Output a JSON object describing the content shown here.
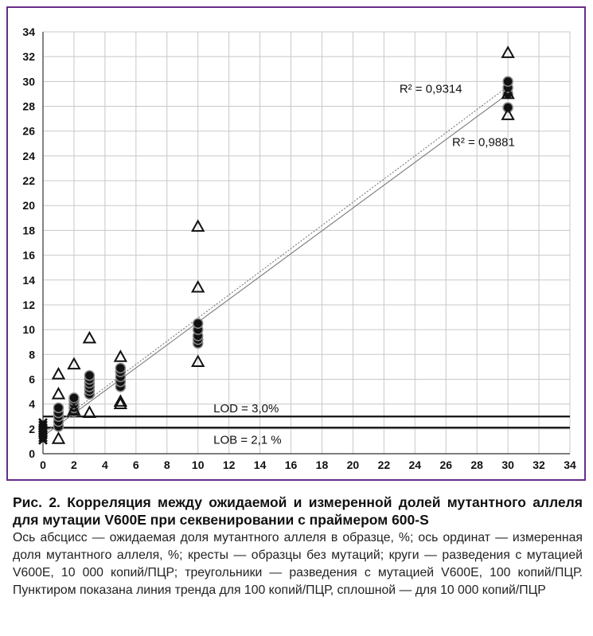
{
  "chart_data": {
    "type": "scatter",
    "xlim": [
      0,
      34
    ],
    "ylim": [
      0,
      34
    ],
    "x_ticks": [
      0,
      2,
      4,
      6,
      8,
      10,
      12,
      14,
      16,
      18,
      20,
      22,
      24,
      26,
      28,
      30,
      32,
      34
    ],
    "y_ticks": [
      0,
      2,
      4,
      6,
      8,
      10,
      12,
      14,
      16,
      18,
      20,
      22,
      24,
      26,
      28,
      30,
      32,
      34
    ],
    "grid": true,
    "series": [
      {
        "marker": "cross",
        "points": [
          [
            0,
            1.3
          ],
          [
            0,
            1.5
          ],
          [
            0,
            1.7
          ],
          [
            0,
            1.9
          ],
          [
            0,
            2.1
          ],
          [
            0,
            2.3
          ],
          [
            0,
            1.1
          ],
          [
            0,
            2.5
          ]
        ]
      },
      {
        "marker": "circle",
        "points": [
          [
            1,
            2.2
          ],
          [
            1,
            2.6
          ],
          [
            1,
            3.0
          ],
          [
            1,
            3.3
          ],
          [
            1,
            3.7
          ],
          [
            2,
            3.4
          ],
          [
            2,
            3.7
          ],
          [
            2,
            4.0
          ],
          [
            2,
            4.3
          ],
          [
            2,
            4.5
          ],
          [
            3,
            4.8
          ],
          [
            3,
            5.1
          ],
          [
            3,
            5.4
          ],
          [
            3,
            5.7
          ],
          [
            3,
            6.0
          ],
          [
            3,
            6.3
          ],
          [
            5,
            5.4
          ],
          [
            5,
            5.8
          ],
          [
            5,
            6.2
          ],
          [
            5,
            6.6
          ],
          [
            5,
            6.9
          ],
          [
            10,
            8.9
          ],
          [
            10,
            9.2
          ],
          [
            10,
            9.5
          ],
          [
            10,
            10.0
          ],
          [
            10,
            10.5
          ],
          [
            30,
            27.9
          ],
          [
            30,
            29.0
          ],
          [
            30,
            29.5
          ],
          [
            30,
            30.0
          ]
        ]
      },
      {
        "marker": "triangle",
        "points": [
          [
            1,
            1.2
          ],
          [
            1,
            4.8
          ],
          [
            1,
            6.4
          ],
          [
            2,
            3.5
          ],
          [
            2,
            7.2
          ],
          [
            3,
            3.3
          ],
          [
            3,
            9.3
          ],
          [
            5,
            4.0
          ],
          [
            5,
            4.2
          ],
          [
            5,
            7.8
          ],
          [
            10,
            7.4
          ],
          [
            10,
            13.4
          ],
          [
            10,
            18.3
          ],
          [
            30,
            27.3
          ],
          [
            30,
            29.0
          ],
          [
            30,
            32.3
          ]
        ]
      }
    ],
    "trendlines": [
      {
        "style": "dotted",
        "x": [
          0,
          30
        ],
        "y": [
          1.6,
          29.6
        ]
      },
      {
        "style": "solid",
        "x": [
          0,
          30
        ],
        "y": [
          1.4,
          29.0
        ]
      }
    ],
    "reference_lines": [
      {
        "label": "LOD = 3,0%",
        "y": 3.0
      },
      {
        "label": "LOB = 2,1 %",
        "y": 2.1
      }
    ],
    "annotations": [
      {
        "text": "R² = 0,9314",
        "x": 23.0,
        "y": 29.1
      },
      {
        "text": "R² = 0,9881",
        "x": 26.4,
        "y": 24.8
      }
    ]
  },
  "caption": {
    "title": "Рис. 2. Корреляция между ожидаемой и измеренной долей мутантного аллеля для мутации V600E при секвенировании с праймером 600-S",
    "body": "Ось абсцисс — ожидаемая доля мутантного аллеля в образце, %; ось ординат — измеренная доля мутантного аллеля, %; кресты — образцы без мутаций; круги — разведения с мутацией V600E, 10 000 копий/ПЦР; треугольники — разведения с мутацией V600E, 100 копий/ПЦР. Пунктиром показана линия тренда для 100 копий/ПЦР, сплошной — для 10 000 копий/ПЦР"
  }
}
